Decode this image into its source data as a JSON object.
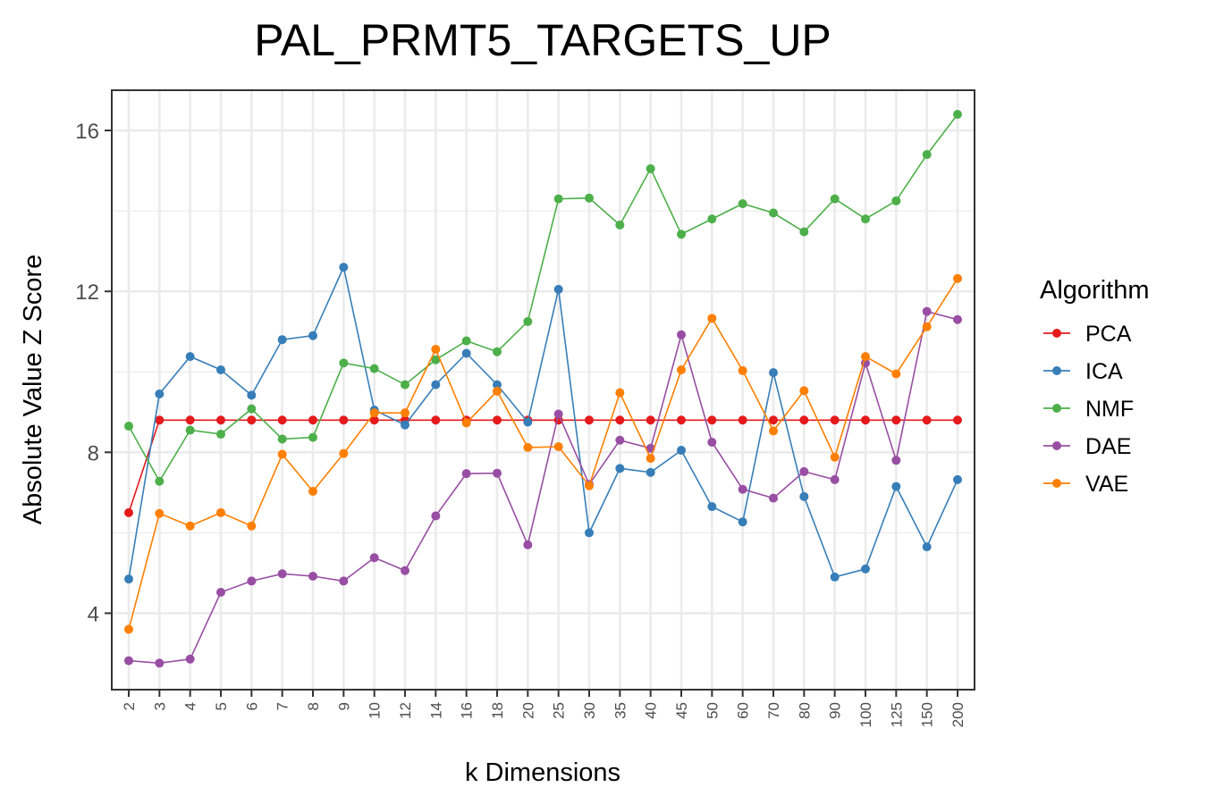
{
  "chart_data": {
    "type": "line",
    "title": "PAL_PRMT5_TARGETS_UP",
    "xlabel": "k Dimensions",
    "ylabel": "Absolute Value Z Score",
    "categories": [
      "2",
      "3",
      "4",
      "5",
      "6",
      "7",
      "8",
      "9",
      "10",
      "12",
      "14",
      "16",
      "18",
      "20",
      "25",
      "30",
      "35",
      "40",
      "45",
      "50",
      "60",
      "70",
      "80",
      "90",
      "100",
      "125",
      "150",
      "200"
    ],
    "ylim": [
      2.1,
      17.0
    ],
    "yticks": [
      4,
      8,
      12,
      16
    ],
    "grid": true,
    "legend_title": "Algorithm",
    "legend_position": "right",
    "series": [
      {
        "name": "PCA",
        "color": "#E41A1C",
        "values": [
          6.5,
          8.8,
          8.8,
          8.8,
          8.8,
          8.8,
          8.8,
          8.8,
          8.8,
          8.8,
          8.8,
          8.8,
          8.8,
          8.8,
          8.8,
          8.8,
          8.8,
          8.8,
          8.8,
          8.8,
          8.8,
          8.8,
          8.8,
          8.8,
          8.8,
          8.8,
          8.8,
          8.8
        ]
      },
      {
        "name": "ICA",
        "color": "#377EB8",
        "values": [
          4.85,
          9.45,
          10.38,
          10.05,
          9.42,
          10.8,
          10.9,
          12.6,
          9.05,
          8.68,
          9.68,
          10.46,
          9.68,
          8.75,
          12.05,
          6.0,
          7.6,
          7.5,
          8.05,
          6.65,
          6.27,
          9.98,
          6.9,
          4.9,
          5.1,
          7.15,
          5.65,
          7.32
        ]
      },
      {
        "name": "NMF",
        "color": "#4DAF4A",
        "values": [
          8.65,
          7.28,
          8.55,
          8.45,
          9.08,
          8.33,
          8.37,
          10.22,
          10.08,
          9.68,
          10.3,
          10.77,
          10.5,
          11.25,
          14.3,
          14.32,
          13.65,
          15.05,
          13.42,
          13.8,
          14.18,
          13.95,
          13.48,
          14.3,
          13.8,
          14.25,
          15.4,
          16.4
        ]
      },
      {
        "name": "DAE",
        "color": "#984EA3",
        "values": [
          2.82,
          2.76,
          2.86,
          4.52,
          4.8,
          4.98,
          4.92,
          4.8,
          5.38,
          5.06,
          6.42,
          7.47,
          7.48,
          5.7,
          8.95,
          7.2,
          8.3,
          8.1,
          10.92,
          8.25,
          7.08,
          6.86,
          7.52,
          7.32,
          10.22,
          7.8,
          11.5,
          11.3
        ]
      },
      {
        "name": "VAE",
        "color": "#FF7F00",
        "values": [
          3.6,
          6.48,
          6.17,
          6.5,
          6.17,
          7.95,
          7.03,
          7.97,
          8.98,
          8.98,
          10.56,
          8.73,
          9.52,
          8.12,
          8.14,
          7.17,
          9.48,
          7.85,
          10.05,
          11.33,
          10.03,
          8.53,
          9.53,
          7.88,
          10.38,
          9.95,
          11.12,
          12.32
        ]
      }
    ]
  }
}
